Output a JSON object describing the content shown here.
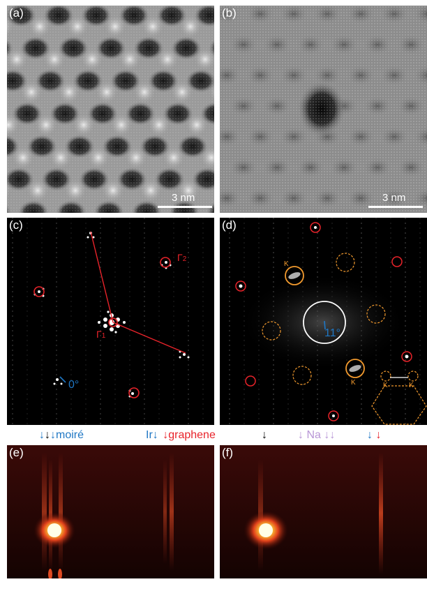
{
  "panels": {
    "a": {
      "label": "(a)",
      "scale": "3 nm"
    },
    "b": {
      "label": "(b)",
      "scale": "3 nm"
    },
    "c": {
      "label": "(c)",
      "gamma1": "Γ",
      "gamma1_sub": "1",
      "gamma2": "Γ",
      "gamma2_sub": "2",
      "angle": "0°"
    },
    "d": {
      "label": "(d)",
      "angle": "11°",
      "k1": "K",
      "k2": "K",
      "k3": "K",
      "k4": "K"
    },
    "e": {
      "label": "(e)"
    },
    "f": {
      "label": "(f)"
    }
  },
  "strip": {
    "moire_label": "moiré",
    "ir_label": "Ir",
    "graphene_label": "graphene",
    "na_label": "Na",
    "arrow": "↓"
  },
  "colors": {
    "blue": "#1f77c4",
    "black": "#000000",
    "red": "#e8232a",
    "orange": "#f29a2e",
    "violet": "#b896d6"
  }
}
